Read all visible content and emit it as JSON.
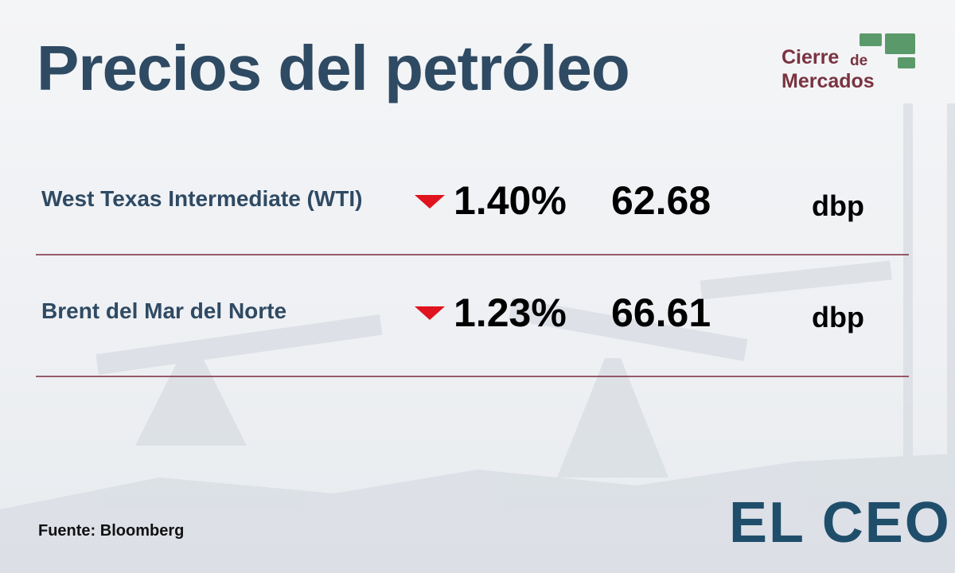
{
  "header": {
    "title": "Precios del petróleo"
  },
  "badge": {
    "line1": "Cierre",
    "small": "de",
    "line2": "Mercados"
  },
  "rows": [
    {
      "name": "West Texas Intermediate (WTI)",
      "change": "1.40%",
      "price": "62.68",
      "unit": "dbp"
    },
    {
      "name": "Brent del Mar del Norte",
      "change": "1.23%",
      "price": "66.61",
      "unit": "dbp"
    }
  ],
  "footer": {
    "source": "Fuente: Bloomberg",
    "logo": "EL CEO"
  }
}
